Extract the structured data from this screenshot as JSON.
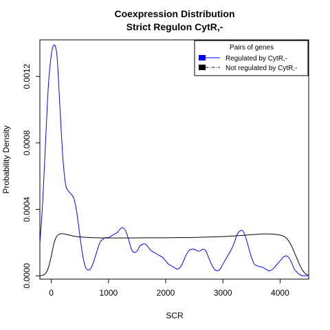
{
  "chart_data": {
    "type": "line",
    "title": "Coexpression Distribution",
    "subtitle": "Strict Regulon CytR,-",
    "xlabel": "SCR",
    "ylabel": "Probability Density",
    "xlim": [
      -200,
      4500
    ],
    "ylim": [
      -2e-05,
      0.00142
    ],
    "x_ticks": [
      0,
      1000,
      2000,
      3000,
      4000
    ],
    "x_tick_labels": [
      "0",
      "1000",
      "2000",
      "3000",
      "4000"
    ],
    "y_ticks": [
      0,
      0.0004,
      0.0008,
      0.0012
    ],
    "y_tick_labels": [
      "0.0000",
      "0.0004",
      "0.0008",
      "0.0012"
    ],
    "grid": false,
    "legend": {
      "title": "Pairs of genes",
      "position": "top-right",
      "entries": [
        {
          "label": "Regulated by  CytR,-",
          "color": "#0000ff"
        },
        {
          "label": "Not regulated by  CytR,-",
          "color": "#000000"
        }
      ]
    },
    "series": [
      {
        "name": "Regulated by  CytR,-",
        "color": "#0000ff",
        "x": [
          -200,
          -150,
          -100,
          -50,
          0,
          50,
          100,
          150,
          200,
          250,
          300,
          350,
          400,
          450,
          500,
          550,
          600,
          650,
          700,
          750,
          800,
          850,
          900,
          950,
          1000,
          1050,
          1100,
          1150,
          1200,
          1250,
          1300,
          1350,
          1400,
          1450,
          1500,
          1550,
          1600,
          1650,
          1700,
          1750,
          1800,
          1850,
          1900,
          1950,
          2000,
          2050,
          2100,
          2150,
          2200,
          2250,
          2300,
          2350,
          2400,
          2450,
          2500,
          2550,
          2600,
          2650,
          2700,
          2750,
          2800,
          2850,
          2900,
          2950,
          3000,
          3050,
          3100,
          3150,
          3200,
          3250,
          3300,
          3350,
          3400,
          3450,
          3500,
          3550,
          3600,
          3650,
          3700,
          3750,
          3800,
          3850,
          3900,
          3950,
          4000,
          4050,
          4100,
          4150,
          4200,
          4250,
          4300,
          4350,
          4400,
          4450,
          4500
        ],
        "values": [
          0.000196,
          0.00045,
          0.00081,
          0.00115,
          0.00133,
          0.00139,
          0.00132,
          0.00102,
          0.00072,
          0.00055,
          0.00051,
          0.00049,
          0.00046,
          0.00037,
          0.00024,
          0.00012,
          5e-05,
          3.5e-05,
          5e-05,
          9.5e-05,
          0.00015,
          0.0002,
          0.00022,
          0.00023,
          0.00023,
          0.00024,
          0.00025,
          0.00026,
          0.00028,
          0.00029,
          0.00027,
          0.00022,
          0.00016,
          0.00014,
          0.00015,
          0.00018,
          0.00019,
          0.00019,
          0.00017,
          0.00015,
          0.00014,
          0.00013,
          0.00012,
          0.00011,
          9e-05,
          7e-05,
          6e-05,
          5e-05,
          4e-05,
          5e-05,
          8e-05,
          0.00012,
          0.00015,
          0.00016,
          0.00016,
          0.00015,
          0.00015,
          0.00016,
          0.00015,
          0.00011,
          7e-05,
          4e-05,
          3e-05,
          4e-05,
          7e-05,
          0.0001,
          0.00013,
          0.00016,
          0.0002,
          0.00025,
          0.00027,
          0.00027,
          0.00023,
          0.00017,
          0.00011,
          7e-05,
          6e-05,
          5.5e-05,
          5e-05,
          4e-05,
          3e-05,
          3.5e-05,
          5e-05,
          7e-05,
          9e-05,
          0.00011,
          0.00012,
          0.00011,
          8e-05,
          4e-05,
          2e-05,
          5e-06,
          0.0,
          0.0,
          0.0
        ]
      },
      {
        "name": "Not regulated by  CytR,-",
        "color": "#000000",
        "x": [
          -200,
          -150,
          -100,
          -50,
          0,
          50,
          100,
          150,
          200,
          250,
          300,
          350,
          400,
          450,
          500,
          600,
          700,
          800,
          900,
          1000,
          1200,
          1400,
          1600,
          1800,
          2000,
          2200,
          2400,
          2600,
          2800,
          3000,
          3200,
          3400,
          3600,
          3700,
          3800,
          3900,
          4000,
          4050,
          4100,
          4150,
          4200,
          4250,
          4300,
          4350,
          4400,
          4450,
          4500
        ],
        "values": [
          0.0,
          3e-06,
          1.5e-05,
          5e-05,
          0.00012,
          0.0002,
          0.00024,
          0.000252,
          0.000253,
          0.00025,
          0.000246,
          0.000242,
          0.000238,
          0.000236,
          0.000234,
          0.000232,
          0.00023,
          0.000229,
          0.000228,
          0.000228,
          0.000228,
          0.000228,
          0.000229,
          0.000229,
          0.000229,
          0.00023,
          0.00023,
          0.000232,
          0.000234,
          0.000236,
          0.00024,
          0.000245,
          0.00025,
          0.000252,
          0.000252,
          0.00025,
          0.000245,
          0.00024,
          0.00023,
          0.00021,
          0.00018,
          0.00014,
          0.0001,
          6e-05,
          3e-05,
          1e-05,
          3e-06
        ]
      }
    ]
  }
}
